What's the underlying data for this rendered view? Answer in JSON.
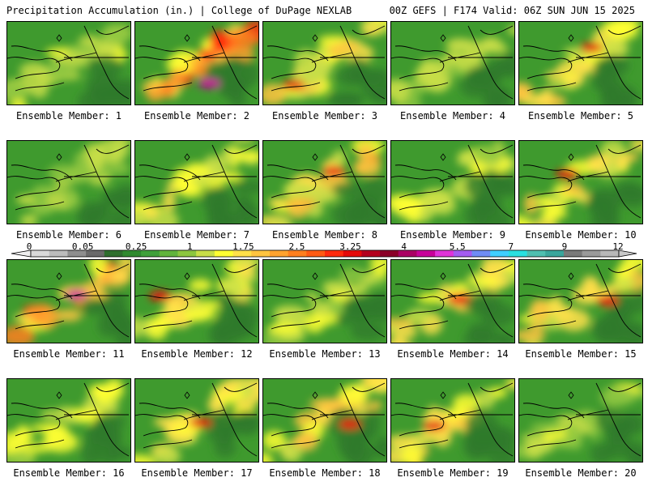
{
  "header": {
    "left": "Precipitation Accumulation (in.) | College of DuPage NEXLAB",
    "right": "00Z GEFS | F174 Valid: 06Z SUN JUN 15 2025"
  },
  "panel_label_prefix": "Ensemble Member: ",
  "members": [
    {
      "label": "Ensemble Member: 1",
      "intensity": 0.3
    },
    {
      "label": "Ensemble Member: 2",
      "intensity": 0.95
    },
    {
      "label": "Ensemble Member: 3",
      "intensity": 0.55
    },
    {
      "label": "Ensemble Member: 4",
      "intensity": 0.25
    },
    {
      "label": "Ensemble Member: 5",
      "intensity": 0.6
    },
    {
      "label": "Ensemble Member: 6",
      "intensity": 0.25
    },
    {
      "label": "Ensemble Member: 7",
      "intensity": 0.4
    },
    {
      "label": "Ensemble Member: 8",
      "intensity": 0.65
    },
    {
      "label": "Ensemble Member: 9",
      "intensity": 0.35
    },
    {
      "label": "Ensemble Member: 10",
      "intensity": 0.55
    },
    {
      "label": "Ensemble Member: 11",
      "intensity": 0.95
    },
    {
      "label": "Ensemble Member: 12",
      "intensity": 0.55
    },
    {
      "label": "Ensemble Member: 13",
      "intensity": 0.35
    },
    {
      "label": "Ensemble Member: 14",
      "intensity": 0.6
    },
    {
      "label": "Ensemble Member: 15",
      "intensity": 0.6
    },
    {
      "label": "Ensemble Member: 16",
      "intensity": 0.35
    },
    {
      "label": "Ensemble Member: 17",
      "intensity": 0.55
    },
    {
      "label": "Ensemble Member: 18",
      "intensity": 0.65
    },
    {
      "label": "Ensemble Member: 19",
      "intensity": 0.55
    },
    {
      "label": "Ensemble Member: 20",
      "intensity": 0.3
    }
  ],
  "colorbar": {
    "tick_labels": [
      "0",
      "0.05",
      "0.25",
      "1",
      "1.75",
      "2.5",
      "3.25",
      "4",
      "5.5",
      "7",
      "9",
      "12"
    ],
    "tick_values": [
      0,
      0.05,
      0.25,
      1,
      1.75,
      2.5,
      3.25,
      4,
      5.5,
      7,
      9,
      12
    ],
    "colors": [
      "#d9d9d9",
      "#bcbcbc",
      "#8e8e8e",
      "#6a6a6a",
      "#2e6e2e",
      "#2f8a2f",
      "#3fa03a",
      "#62b43c",
      "#8cc63f",
      "#c8de48",
      "#ffff33",
      "#ffe14a",
      "#ffc440",
      "#ffa22e",
      "#ff7f1f",
      "#ff5a14",
      "#ff2a0e",
      "#e60a0a",
      "#b4001e",
      "#8a0028",
      "#aa0064",
      "#c8009a",
      "#e033d9",
      "#a45cf0",
      "#6f8cf5",
      "#3fcfff",
      "#29e0e0",
      "#4fbfb0",
      "#3aa69c",
      "#7a7a7a",
      "#9a9a9a",
      "#b8b8b8"
    ]
  }
}
